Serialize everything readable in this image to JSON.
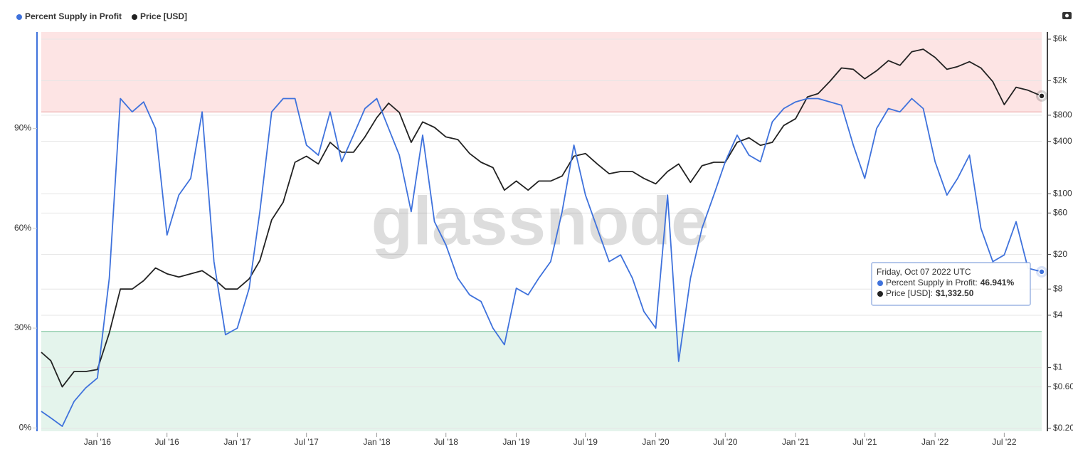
{
  "chart_data": {
    "type": "line",
    "watermark": "glassnode",
    "x": [
      "2015-08-07",
      "2015-09-01",
      "2015-10-01",
      "2015-11-01",
      "2015-12-01",
      "2016-01-01",
      "2016-02-01",
      "2016-03-01",
      "2016-04-01",
      "2016-05-01",
      "2016-06-01",
      "2016-07-01",
      "2016-08-01",
      "2016-09-01",
      "2016-10-01",
      "2016-11-01",
      "2016-12-01",
      "2017-01-01",
      "2017-02-01",
      "2017-03-01",
      "2017-04-01",
      "2017-05-01",
      "2017-06-01",
      "2017-07-01",
      "2017-08-01",
      "2017-09-01",
      "2017-10-01",
      "2017-11-01",
      "2017-12-01",
      "2018-01-01",
      "2018-02-01",
      "2018-03-01",
      "2018-04-01",
      "2018-05-01",
      "2018-06-01",
      "2018-07-01",
      "2018-08-01",
      "2018-09-01",
      "2018-10-01",
      "2018-11-01",
      "2018-12-01",
      "2019-01-01",
      "2019-02-01",
      "2019-03-01",
      "2019-04-01",
      "2019-05-01",
      "2019-06-01",
      "2019-07-01",
      "2019-08-01",
      "2019-09-01",
      "2019-10-01",
      "2019-11-01",
      "2019-12-01",
      "2020-01-01",
      "2020-02-01",
      "2020-03-01",
      "2020-04-01",
      "2020-05-01",
      "2020-06-01",
      "2020-07-01",
      "2020-08-01",
      "2020-09-01",
      "2020-10-01",
      "2020-11-01",
      "2020-12-01",
      "2021-01-01",
      "2021-02-01",
      "2021-03-01",
      "2021-04-01",
      "2021-05-01",
      "2021-06-01",
      "2021-07-01",
      "2021-08-01",
      "2021-09-01",
      "2021-10-01",
      "2021-11-01",
      "2021-12-01",
      "2022-01-01",
      "2022-02-01",
      "2022-03-01",
      "2022-04-01",
      "2022-05-01",
      "2022-06-01",
      "2022-07-01",
      "2022-08-01",
      "2022-09-01",
      "2022-10-07"
    ],
    "series": [
      {
        "name": "Percent Supply in Profit",
        "color": "#3f72dc",
        "axis": "y",
        "values": [
          5,
          3,
          0.5,
          8,
          12,
          15,
          45,
          99,
          95,
          98,
          90,
          58,
          70,
          75,
          95,
          50,
          28,
          30,
          42,
          65,
          95,
          99,
          99,
          85,
          82,
          95,
          80,
          88,
          96,
          99,
          90,
          82,
          65,
          88,
          62,
          55,
          45,
          40,
          38,
          30,
          25,
          42,
          40,
          45,
          50,
          65,
          85,
          70,
          60,
          50,
          52,
          45,
          35,
          30,
          70,
          20,
          45,
          60,
          70,
          80,
          88,
          82,
          80,
          92,
          96,
          98,
          99,
          99,
          98,
          97,
          85,
          75,
          90,
          96,
          95,
          99,
          96,
          80,
          70,
          75,
          82,
          60,
          50,
          52,
          62,
          48,
          46.941
        ]
      },
      {
        "name": "Price [USD]",
        "color": "#222222",
        "axis": "y2",
        "values": [
          1.5,
          1.2,
          0.6,
          0.9,
          0.9,
          0.95,
          2.5,
          8,
          8,
          10,
          14,
          12,
          11,
          12,
          13,
          10.5,
          8,
          8,
          10.5,
          17,
          50,
          80,
          230,
          270,
          220,
          390,
          300,
          300,
          450,
          750,
          1100,
          860,
          390,
          670,
          580,
          450,
          420,
          290,
          230,
          200,
          110,
          140,
          110,
          140,
          140,
          160,
          270,
          290,
          220,
          170,
          180,
          180,
          150,
          130,
          180,
          220,
          135,
          210,
          230,
          230,
          390,
          440,
          360,
          390,
          610,
          730,
          1300,
          1420,
          1970,
          2800,
          2700,
          2100,
          2600,
          3400,
          3000,
          4300,
          4600,
          3700,
          2700,
          2900,
          3300,
          2800,
          1950,
          1060,
          1680,
          1550,
          1332.5
        ]
      }
    ],
    "xlim": [
      "2015-08-07",
      "2022-10-07"
    ],
    "xticks": [
      {
        "value": "2016-01-01",
        "label": "Jan '16"
      },
      {
        "value": "2016-07-01",
        "label": "Jul '16"
      },
      {
        "value": "2017-01-01",
        "label": "Jan '17"
      },
      {
        "value": "2017-07-01",
        "label": "Jul '17"
      },
      {
        "value": "2018-01-01",
        "label": "Jan '18"
      },
      {
        "value": "2018-07-01",
        "label": "Jul '18"
      },
      {
        "value": "2019-01-01",
        "label": "Jan '19"
      },
      {
        "value": "2019-07-01",
        "label": "Jul '19"
      },
      {
        "value": "2020-01-01",
        "label": "Jan '20"
      },
      {
        "value": "2020-07-01",
        "label": "Jul '20"
      },
      {
        "value": "2021-01-01",
        "label": "Jan '21"
      },
      {
        "value": "2021-07-01",
        "label": "Jul '21"
      },
      {
        "value": "2022-01-01",
        "label": "Jan '22"
      },
      {
        "value": "2022-07-01",
        "label": "Jul '22"
      }
    ],
    "ylim": [
      -1,
      119
    ],
    "yticks": [
      {
        "value": 0,
        "label": "0%"
      },
      {
        "value": 30,
        "label": "30%"
      },
      {
        "value": 60,
        "label": "60%"
      },
      {
        "value": 90,
        "label": "90%"
      }
    ],
    "y2lim": [
      0.185,
      7250
    ],
    "y2scale": "log",
    "y2ticks": [
      {
        "value": 0.2,
        "label": "$0.20"
      },
      {
        "value": 0.6,
        "label": "$0.60"
      },
      {
        "value": 1,
        "label": "$1"
      },
      {
        "value": 4,
        "label": "$4"
      },
      {
        "value": 8,
        "label": "$8"
      },
      {
        "value": 20,
        "label": "$20"
      },
      {
        "value": 60,
        "label": "$60"
      },
      {
        "value": 100,
        "label": "$100"
      },
      {
        "value": 400,
        "label": "$400"
      },
      {
        "value": 800,
        "label": "$800"
      },
      {
        "value": 2000,
        "label": "$2k"
      },
      {
        "value": 6000,
        "label": "$6k"
      }
    ],
    "grid": true,
    "bands": [
      {
        "from": 95,
        "to": 119,
        "color": "#fde4e4",
        "line": "#e8a0a0"
      },
      {
        "from": -1,
        "to": 29,
        "color": "#e4f4ec",
        "line": "#7cc49c"
      }
    ],
    "tooltip": {
      "title": "Friday, Oct 07 2022 UTC",
      "rows": [
        {
          "label": "Percent Supply in Profit:",
          "value": "46.941%"
        },
        {
          "label": "Price [USD]:",
          "value": "$1,332.50"
        }
      ]
    }
  }
}
